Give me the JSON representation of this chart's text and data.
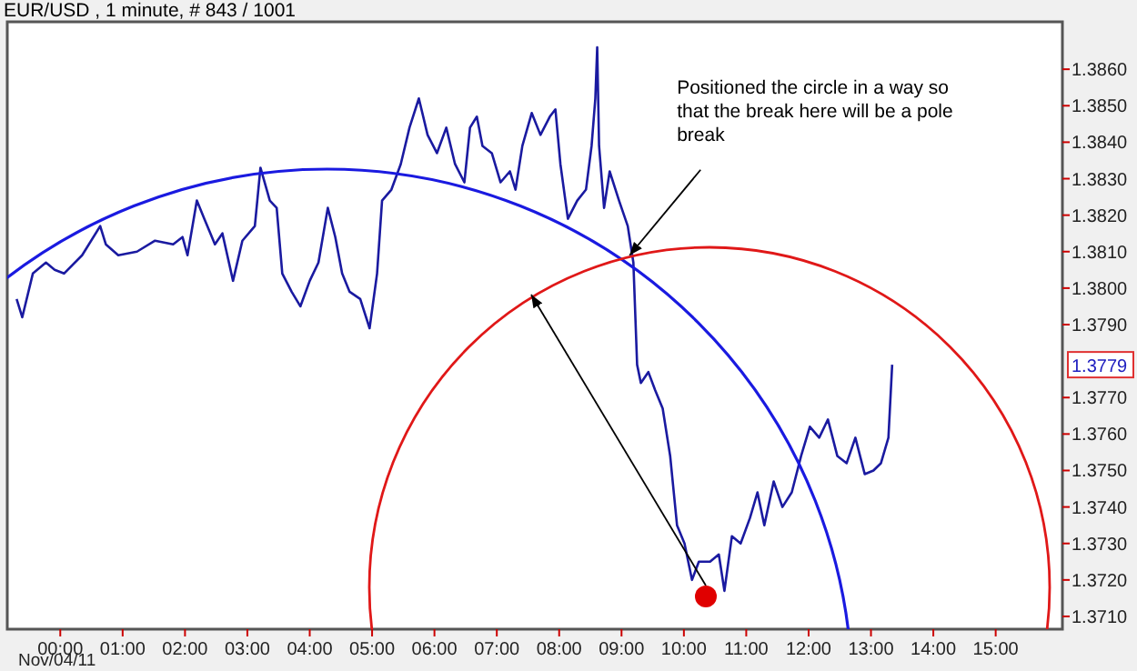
{
  "chart_data": {
    "type": "line",
    "title": "EUR/USD , 1 minute, # 843 / 1001",
    "x": [
      -0.7,
      -0.61,
      -0.44,
      -0.23,
      -0.09,
      0.06,
      0.35,
      0.64,
      0.73,
      0.93,
      1.23,
      1.52,
      1.81,
      1.96,
      2.04,
      2.19,
      2.31,
      2.48,
      2.6,
      2.77,
      2.92,
      3.12,
      3.21,
      3.36,
      3.47,
      3.56,
      3.71,
      3.85,
      4.0,
      4.14,
      4.29,
      4.41,
      4.52,
      4.64,
      4.81,
      4.96,
      5.08,
      5.16,
      5.31,
      5.46,
      5.6,
      5.75,
      5.89,
      6.04,
      6.19,
      6.33,
      6.48,
      6.57,
      6.68,
      6.77,
      6.92,
      7.06,
      7.21,
      7.3,
      7.41,
      7.56,
      7.7,
      7.85,
      7.94,
      8.02,
      8.14,
      8.29,
      8.43,
      8.52,
      8.58,
      8.61,
      8.64,
      8.72,
      8.81,
      8.96,
      9.1,
      9.19,
      9.25,
      9.31,
      9.43,
      9.54,
      9.66,
      9.78,
      9.89,
      10.01,
      10.13,
      10.24,
      10.42,
      10.56,
      10.65,
      10.77,
      10.91,
      11.06,
      11.18,
      11.29,
      11.44,
      11.58,
      11.73,
      11.88,
      12.02,
      12.17,
      12.31,
      12.46,
      12.61,
      12.75,
      12.9,
      13.04,
      13.16,
      13.28,
      13.34
    ],
    "series": [
      {
        "color": "#1a1aa0",
        "values": [
          1.3797,
          1.3792,
          1.3804,
          1.3807,
          1.3805,
          1.3804,
          1.3809,
          1.3817,
          1.3812,
          1.3809,
          1.381,
          1.3813,
          1.3812,
          1.3814,
          1.3809,
          1.3824,
          1.3819,
          1.3812,
          1.3815,
          1.3802,
          1.3813,
          1.3817,
          1.3833,
          1.3824,
          1.3822,
          1.3804,
          1.3799,
          1.3795,
          1.3802,
          1.3807,
          1.3822,
          1.3814,
          1.3804,
          1.3799,
          1.3797,
          1.3789,
          1.3804,
          1.3824,
          1.3827,
          1.3834,
          1.3844,
          1.3852,
          1.3842,
          1.3837,
          1.3844,
          1.3834,
          1.3829,
          1.3844,
          1.3847,
          1.3839,
          1.3837,
          1.3829,
          1.3832,
          1.3827,
          1.3839,
          1.3848,
          1.3842,
          1.3847,
          1.3849,
          1.3834,
          1.3819,
          1.3824,
          1.3827,
          1.3839,
          1.3852,
          1.3866,
          1.3839,
          1.3822,
          1.3832,
          1.3824,
          1.3817,
          1.3807,
          1.3779,
          1.3774,
          1.3777,
          1.3772,
          1.3767,
          1.3754,
          1.3735,
          1.373,
          1.372,
          1.3725,
          1.3725,
          1.3727,
          1.3717,
          1.3732,
          1.373,
          1.3737,
          1.3744,
          1.3735,
          1.3747,
          1.374,
          1.3744,
          1.3754,
          1.3762,
          1.3759,
          1.3764,
          1.3754,
          1.3752,
          1.3759,
          1.3749,
          1.375,
          1.3752,
          1.3759,
          1.3779
        ]
      }
    ],
    "xlim": [
      -0.85,
      16.07
    ],
    "xticks": [
      {
        "value": 0,
        "label": "00:00"
      },
      {
        "value": 1,
        "label": "01:00"
      },
      {
        "value": 2,
        "label": "02:00"
      },
      {
        "value": 3,
        "label": "03:00"
      },
      {
        "value": 4,
        "label": "04:00"
      },
      {
        "value": 5,
        "label": "05:00"
      },
      {
        "value": 6,
        "label": "06:00"
      },
      {
        "value": 7,
        "label": "07:00"
      },
      {
        "value": 8,
        "label": "08:00"
      },
      {
        "value": 9,
        "label": "09:00"
      },
      {
        "value": 10,
        "label": "10:00"
      },
      {
        "value": 11,
        "label": "11:00"
      },
      {
        "value": 12,
        "label": "12:00"
      },
      {
        "value": 13,
        "label": "13:00"
      },
      {
        "value": 14,
        "label": "14:00"
      },
      {
        "value": 15,
        "label": "15:00"
      }
    ],
    "ylim": [
      1.37065,
      1.3873
    ],
    "yticks": [
      {
        "value": 1.371,
        "label": "1.3710"
      },
      {
        "value": 1.372,
        "label": "1.3720"
      },
      {
        "value": 1.373,
        "label": "1.3730"
      },
      {
        "value": 1.374,
        "label": "1.3740"
      },
      {
        "value": 1.375,
        "label": "1.3750"
      },
      {
        "value": 1.376,
        "label": "1.3760"
      },
      {
        "value": 1.377,
        "label": "1.3770"
      },
      {
        "value": 1.379,
        "label": "1.3790"
      },
      {
        "value": 1.38,
        "label": "1.3800"
      },
      {
        "value": 1.381,
        "label": "1.3810"
      },
      {
        "value": 1.382,
        "label": "1.3820"
      },
      {
        "value": 1.383,
        "label": "1.3830"
      },
      {
        "value": 1.384,
        "label": "1.3840"
      },
      {
        "value": 1.385,
        "label": "1.3850"
      },
      {
        "value": 1.386,
        "label": "1.3860"
      }
    ],
    "annotations": [
      {
        "text": "Positioned the circle in a way so that the break here will be a pole break",
        "x": 9.13,
        "y": 1.3809
      },
      {
        "text": "1.3779",
        "y": 1.3779
      },
      "Nov/04/11"
    ],
    "grid": false
  }
}
